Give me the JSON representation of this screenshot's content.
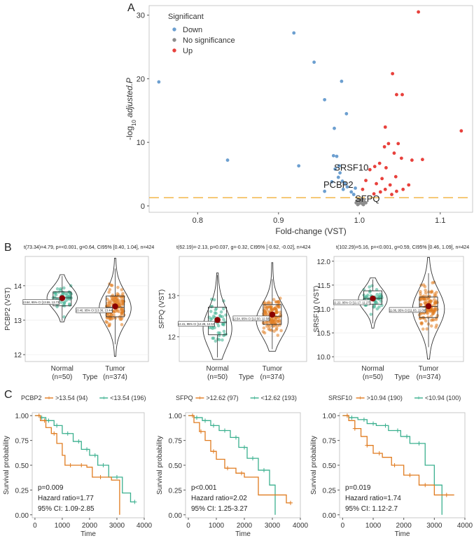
{
  "panels": {
    "A": "A",
    "B": "B",
    "C": "C"
  },
  "colors": {
    "down": "#6c9fd0",
    "up": "#e8413c",
    "ns": "#8c8c8c",
    "high": "#e07b1f",
    "low": "#3bb08f",
    "threshold": "#f2b64a"
  },
  "chart_data": [
    {
      "type": "scatter",
      "id": "volcano",
      "xlabel": "Fold-change (VST)",
      "ylabel_parts": [
        "-log",
        "10",
        " adjusted.P"
      ],
      "xlim": [
        0.74,
        1.14
      ],
      "ylim": [
        -1,
        31.5
      ],
      "xticks": [
        0.8,
        0.9,
        1.0,
        1.1
      ],
      "xtick_labels": [
        "0.8",
        "0.9",
        "1.0",
        "1.1"
      ],
      "yticks": [
        0,
        10,
        20,
        30
      ],
      "ytick_labels": [
        "0",
        "10",
        "20",
        "30"
      ],
      "threshold_y": 1.3,
      "legend": {
        "title": "Significant",
        "items": [
          {
            "label": "Down",
            "key": "down"
          },
          {
            "label": "No significance",
            "key": "ns"
          },
          {
            "label": "Up",
            "key": "up"
          }
        ]
      },
      "labels": [
        {
          "text": "SRSF10",
          "x": 0.99,
          "y": 6.1
        },
        {
          "text": "PCBP2",
          "x": 0.974,
          "y": 3.4
        },
        {
          "text": "SFPQ",
          "x": 1.01,
          "y": 1.2
        }
      ],
      "down": [
        [
          0.752,
          19.5
        ],
        [
          0.837,
          7.2
        ],
        [
          0.919,
          27.2
        ],
        [
          0.944,
          22.6
        ],
        [
          0.957,
          16.7
        ],
        [
          0.925,
          6.3
        ],
        [
          0.969,
          12.2
        ],
        [
          0.978,
          19.6
        ],
        [
          0.984,
          14.5
        ],
        [
          0.968,
          7.9
        ],
        [
          0.972,
          7.8
        ],
        [
          0.957,
          2.3
        ],
        [
          0.976,
          5.2
        ],
        [
          0.974,
          4.5
        ],
        [
          0.979,
          3.9
        ],
        [
          0.982,
          3.5
        ],
        [
          0.985,
          3.0
        ],
        [
          0.99,
          2.2
        ],
        [
          0.993,
          1.8
        ],
        [
          0.966,
          3.8
        ],
        [
          0.97,
          5.8
        ],
        [
          0.975,
          6.3
        ],
        [
          0.98,
          2.6
        ],
        [
          0.995,
          2.8
        ]
      ],
      "up": [
        [
          1.073,
          30.5
        ],
        [
          1.041,
          20.8
        ],
        [
          1.046,
          17.5
        ],
        [
          1.053,
          17.5
        ],
        [
          1.126,
          11.8
        ],
        [
          1.032,
          12.4
        ],
        [
          1.031,
          9.3
        ],
        [
          1.036,
          9.8
        ],
        [
          1.048,
          9.8
        ],
        [
          1.043,
          8.3
        ],
        [
          1.052,
          7.5
        ],
        [
          1.065,
          7.2
        ],
        [
          1.078,
          7.3
        ],
        [
          1.025,
          6.7
        ],
        [
          1.019,
          6.2
        ],
        [
          1.013,
          5.7
        ],
        [
          1.033,
          6.0
        ],
        [
          1.045,
          4.6
        ],
        [
          1.061,
          3.3
        ],
        [
          1.032,
          2.6
        ],
        [
          1.021,
          3.5
        ],
        [
          1.028,
          4.3
        ],
        [
          1.008,
          4.0
        ],
        [
          1.004,
          2.6
        ],
        [
          1.046,
          2.3
        ],
        [
          1.038,
          3.3
        ],
        [
          1.026,
          2.2
        ],
        [
          1.054,
          2.6
        ],
        [
          1.018,
          1.9
        ],
        [
          1.04,
          1.8
        ]
      ],
      "ns": [
        [
          0.998,
          0.2
        ],
        [
          1.0,
          0.4
        ],
        [
          1.002,
          0.6
        ],
        [
          1.004,
          0.3
        ],
        [
          0.996,
          0.5
        ],
        [
          1.006,
          0.7
        ],
        [
          1.008,
          0.5
        ],
        [
          1.001,
          0.9
        ],
        [
          0.999,
          1.0
        ],
        [
          1.003,
          1.1
        ],
        [
          1.005,
          0.2
        ],
        [
          0.997,
          0.8
        ]
      ]
    },
    {
      "type": "violin",
      "id": "pcbp2",
      "stat": "t(73.34)=4.79, p=<0.001, g=0.64, CI95% [0.40, 1.04], n=424",
      "ylabel": "PCBP2 (VST)",
      "xlabel": "Type",
      "ylim": [
        11.8,
        14.85
      ],
      "yticks": [
        12,
        13,
        14
      ],
      "ytick_labels": [
        "12",
        "13",
        "14"
      ],
      "groups": [
        {
          "name": "Normal",
          "n": "(n=50)",
          "mean": 13.64,
          "median": 13.65,
          "q1": 13.42,
          "q3": 13.82,
          "wlo": 12.98,
          "whi": 14.28,
          "min": 12.95,
          "max": 14.32,
          "modes": [
            13.65
          ],
          "width": 0.95,
          "sd": 0.3,
          "annot": "13.64, 95% CI [13.55, 13.73]",
          "count": 50
        },
        {
          "name": "Tumor",
          "n": "(n=374)",
          "mean": 13.4,
          "median": 13.38,
          "q1": 13.1,
          "q3": 13.7,
          "wlo": 12.3,
          "whi": 14.5,
          "min": 11.95,
          "max": 14.8,
          "modes": [
            13.35
          ],
          "width": 1.0,
          "sd": 0.45,
          "annot": "13.40, 95% CI [13.36, 13.44]",
          "count": 130
        }
      ]
    },
    {
      "type": "violin",
      "id": "sfpq",
      "stat": "t(62.19)=-2.13, p=0.037, g=-0.32, CI95% [-0.62, -0.02], n=424",
      "ylabel": "SFPQ (VST)",
      "xlabel": "Type",
      "ylim": [
        11.4,
        13.95
      ],
      "yticks": [
        12,
        13
      ],
      "ytick_labels": [
        "12",
        "13"
      ],
      "groups": [
        {
          "name": "Normal",
          "n": "(n=50)",
          "mean": 12.41,
          "median": 12.35,
          "q1": 12.05,
          "q3": 12.72,
          "wlo": 11.5,
          "whi": 13.5,
          "min": 11.45,
          "max": 13.55,
          "modes": [
            12.2
          ],
          "width": 0.9,
          "sd": 0.45,
          "annot": "12.41, 95% CI [12.28, 12.53]",
          "count": 50
        },
        {
          "name": "Tumor",
          "n": "(n=374)",
          "mean": 12.54,
          "median": 12.5,
          "q1": 12.3,
          "q3": 12.78,
          "wlo": 11.7,
          "whi": 13.4,
          "min": 11.65,
          "max": 13.8,
          "modes": [
            12.4
          ],
          "width": 1.0,
          "sd": 0.38,
          "annot": "12.54, 95% CI [12.50, 12.58]",
          "count": 130
        }
      ]
    },
    {
      "type": "violin",
      "id": "srsf10",
      "stat": "t(102.29)=5.16, p=<0.001, g=0.59, CI95% [0.46, 1.09], n=424",
      "ylabel": "SRSF10 (VST)",
      "xlabel": "Type",
      "ylim": [
        9.9,
        12.1
      ],
      "yticks": [
        10,
        10.5,
        11,
        11.5,
        12
      ],
      "ytick_labels": [
        "10.0",
        "10.5",
        "11.0",
        "11.5",
        "12.0"
      ],
      "groups": [
        {
          "name": "Normal",
          "n": "(n=50)",
          "mean": 11.22,
          "median": 11.22,
          "q1": 11.1,
          "q3": 11.38,
          "wlo": 10.7,
          "whi": 11.62,
          "min": 10.6,
          "max": 11.65,
          "modes": [
            11.2
          ],
          "width": 0.9,
          "sd": 0.22,
          "annot": "11.22, 95% CI [11.17, 11.27]",
          "count": 50
        },
        {
          "name": "Tumor",
          "n": "(n=374)",
          "mean": 11.06,
          "median": 11.05,
          "q1": 10.82,
          "q3": 11.25,
          "wlo": 10.2,
          "whi": 11.75,
          "min": 9.95,
          "max": 12.08,
          "modes": [
            11.0
          ],
          "width": 1.0,
          "sd": 0.38,
          "annot": "11.06, 95% CI [11.03, 11.09]",
          "count": 130
        }
      ]
    },
    {
      "type": "line",
      "id": "km-pcbp2",
      "legend_title": "PCBP2",
      "high_label": ">13.54 (94)",
      "low_label": "<13.54 (196)",
      "xlabel": "Time",
      "ylabel": "Survival probability",
      "xlim": [
        -100,
        4000
      ],
      "ylim": [
        -0.03,
        1.03
      ],
      "xticks": [
        0,
        1000,
        2000,
        3000,
        4000
      ],
      "yticks": [
        0,
        0.25,
        0.5,
        0.75,
        1.0
      ],
      "ytick_labels": [
        "0.00",
        "0.25",
        "0.50",
        "0.75",
        "1.00"
      ],
      "p": "p=0.009",
      "hr": "Hazard ratio=1.77",
      "ci": "95% CI: 1.09-2.85",
      "high": [
        [
          0,
          1
        ],
        [
          200,
          0.95
        ],
        [
          400,
          0.88
        ],
        [
          600,
          0.82
        ],
        [
          800,
          0.72
        ],
        [
          1000,
          0.6
        ],
        [
          1100,
          0.5
        ],
        [
          1900,
          0.48
        ],
        [
          2100,
          0.38
        ],
        [
          2800,
          0.35
        ],
        [
          3100,
          0.0
        ]
      ],
      "low": [
        [
          0,
          1
        ],
        [
          200,
          0.98
        ],
        [
          400,
          0.95
        ],
        [
          700,
          0.9
        ],
        [
          1000,
          0.82
        ],
        [
          1400,
          0.74
        ],
        [
          1700,
          0.66
        ],
        [
          2000,
          0.6
        ],
        [
          2300,
          0.5
        ],
        [
          2700,
          0.38
        ],
        [
          3200,
          0.22
        ],
        [
          3500,
          0.13
        ],
        [
          3650,
          0.13
        ]
      ],
      "high_censor": [
        150,
        350,
        700,
        1300,
        1700,
        2400
      ],
      "low_censor": [
        250,
        500,
        800,
        1200,
        1600,
        1900,
        2200,
        2500,
        3000,
        3650
      ]
    },
    {
      "type": "line",
      "id": "km-sfpq",
      "legend_title": "SFPQ",
      "high_label": ">12.62 (97)",
      "low_label": "<12.62 (193)",
      "xlabel": "Time",
      "ylabel": "Survival probability",
      "xlim": [
        -100,
        4000
      ],
      "ylim": [
        -0.03,
        1.03
      ],
      "xticks": [
        0,
        1000,
        2000,
        3000,
        4000
      ],
      "yticks": [
        0,
        0.25,
        0.5,
        0.75,
        1.0
      ],
      "ytick_labels": [
        "0.00",
        "0.25",
        "0.50",
        "0.75",
        "1.00"
      ],
      "p": "p<0.001",
      "hr": "Hazard ratio=2.02",
      "ci": "95% CI: 1.25-3.27",
      "high": [
        [
          0,
          1
        ],
        [
          200,
          0.93
        ],
        [
          400,
          0.84
        ],
        [
          600,
          0.75
        ],
        [
          800,
          0.64
        ],
        [
          1000,
          0.56
        ],
        [
          1300,
          0.47
        ],
        [
          1700,
          0.42
        ],
        [
          2000,
          0.38
        ],
        [
          2500,
          0.2
        ],
        [
          3500,
          0.12
        ],
        [
          3650,
          0.12
        ]
      ],
      "low": [
        [
          0,
          1
        ],
        [
          200,
          0.98
        ],
        [
          500,
          0.95
        ],
        [
          800,
          0.9
        ],
        [
          1100,
          0.85
        ],
        [
          1500,
          0.78
        ],
        [
          1800,
          0.68
        ],
        [
          2100,
          0.57
        ],
        [
          2500,
          0.45
        ],
        [
          2900,
          0.3
        ],
        [
          3100,
          0.0
        ]
      ],
      "high_censor": [
        150,
        450,
        900,
        1400,
        1900,
        3650
      ],
      "low_censor": [
        300,
        600,
        900,
        1300,
        1700,
        2000,
        2300,
        2700
      ]
    },
    {
      "type": "line",
      "id": "km-srsf10",
      "legend_title": "SRSF10",
      "high_label": ">10.94 (190)",
      "low_label": "<10.94 (100)",
      "xlabel": "Time",
      "ylabel": "Survival probability",
      "xlim": [
        -100,
        4000
      ],
      "ylim": [
        -0.03,
        1.03
      ],
      "xticks": [
        0,
        1000,
        2000,
        3000,
        4000
      ],
      "yticks": [
        0,
        0.25,
        0.5,
        0.75,
        1.0
      ],
      "ytick_labels": [
        "0.00",
        "0.25",
        "0.50",
        "0.75",
        "1.00"
      ],
      "p": "p=0.019",
      "hr": "Hazard ratio=1.74",
      "ci": "95% CI: 1.12-2.7",
      "high": [
        [
          0,
          1
        ],
        [
          200,
          0.95
        ],
        [
          400,
          0.87
        ],
        [
          600,
          0.79
        ],
        [
          800,
          0.7
        ],
        [
          1000,
          0.62
        ],
        [
          1300,
          0.58
        ],
        [
          1600,
          0.5
        ],
        [
          2000,
          0.4
        ],
        [
          2500,
          0.3
        ],
        [
          3000,
          0.2
        ],
        [
          3650,
          0.2
        ]
      ],
      "low": [
        [
          0,
          1
        ],
        [
          200,
          0.98
        ],
        [
          500,
          0.96
        ],
        [
          800,
          0.92
        ],
        [
          1100,
          0.9
        ],
        [
          1500,
          0.85
        ],
        [
          1900,
          0.79
        ],
        [
          2200,
          0.72
        ],
        [
          2700,
          0.5
        ],
        [
          3000,
          0.3
        ],
        [
          3250,
          0.0
        ]
      ],
      "high_censor": [
        150,
        400,
        800,
        1200,
        1700,
        2200,
        2700,
        3400
      ],
      "low_censor": [
        300,
        700,
        1000,
        1400,
        1800,
        2100,
        2500
      ]
    }
  ]
}
